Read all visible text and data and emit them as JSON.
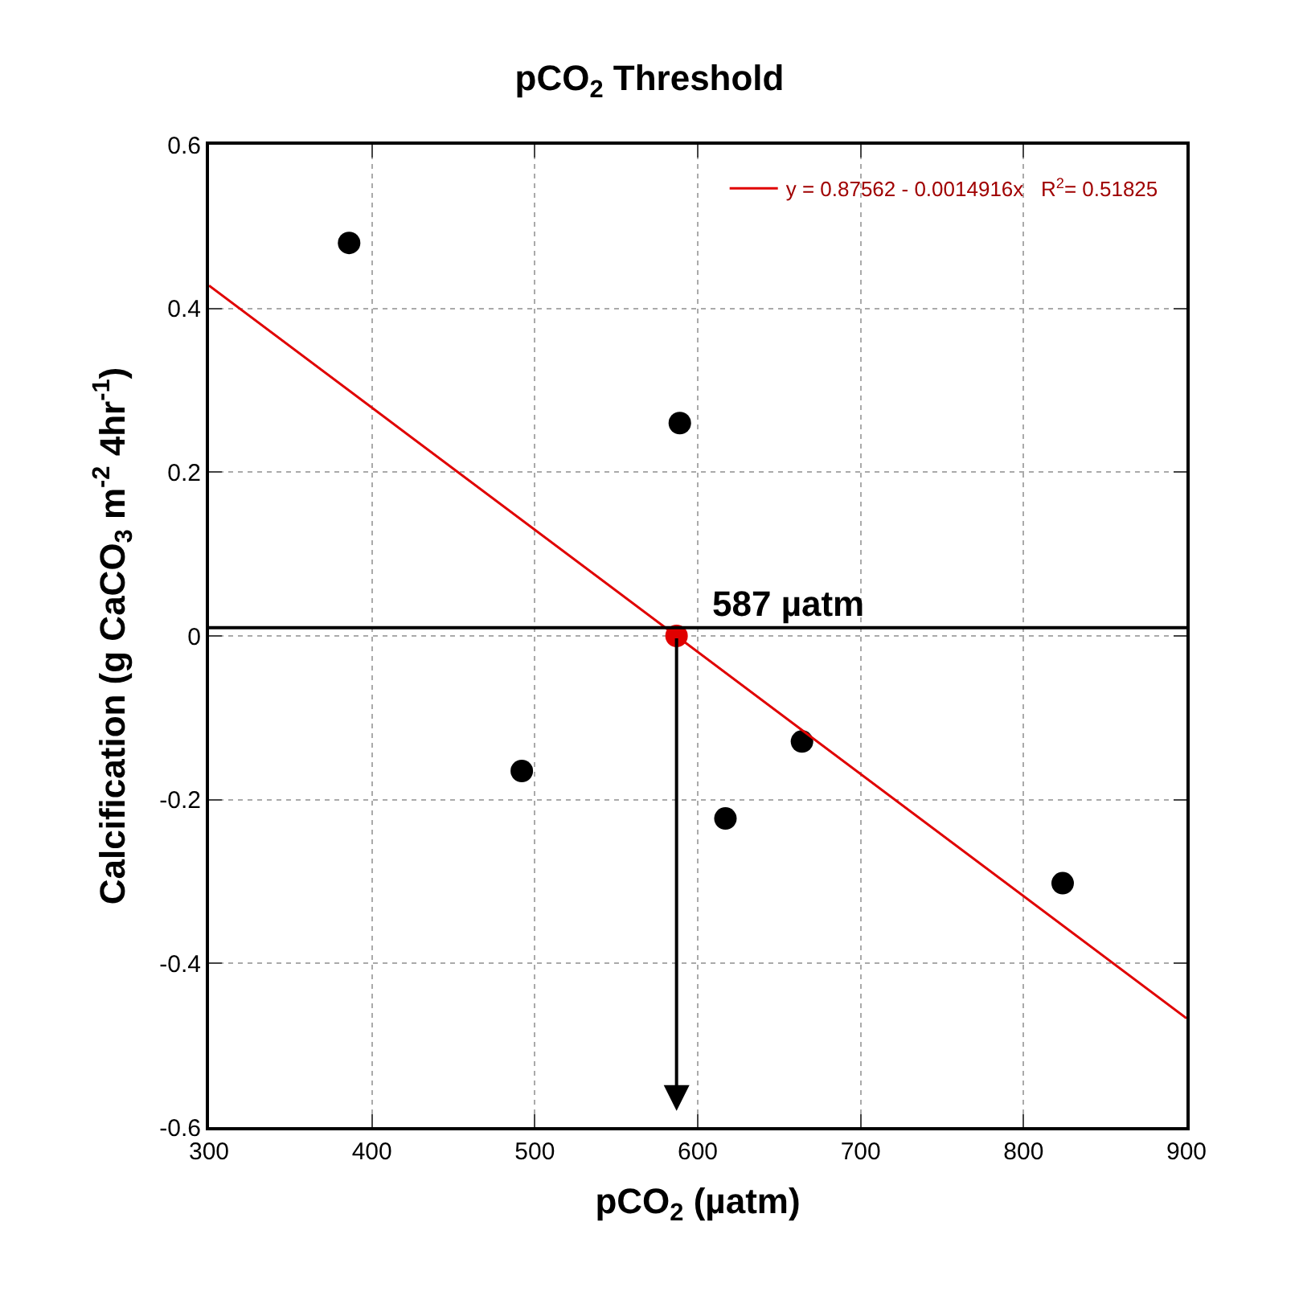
{
  "chart_data": {
    "type": "scatter",
    "title": "pCO$_{2}$ Threshold",
    "xlabel": "pCO$_{2}$ (µatm)",
    "ylabel": "Calcification (g CaCO$_{3}$ m$^{-2}$ 4hr$^{-1}$)",
    "x": [
      386,
      589,
      492,
      617,
      664,
      824
    ],
    "series": [
      {
        "color": "#000000",
        "values": [
          0.48,
          0.26,
          -0.165,
          -0.223,
          -0.129,
          -0.302
        ]
      },
      {
        "type": "line",
        "name": "y = 0.87562 - 0.0014916x   R$^{2}$= 0.51825",
        "color": "#e00000",
        "marker": "none",
        "x": [
          300,
          900
        ],
        "values": [
          0.428,
          -0.467
        ]
      },
      {
        "type": "scatter",
        "color": "#e00000",
        "x": [
          587
        ],
        "values": [
          0
        ]
      }
    ],
    "ref_lines": [
      {
        "axis": "y",
        "value": 0.01,
        "color": "#000000"
      }
    ],
    "annotations": [
      {
        "text": "587 µatm",
        "x": 587,
        "y": 0.01
      }
    ],
    "xlim": [
      300,
      900
    ],
    "xticks": [
      300,
      400,
      500,
      600,
      700,
      800,
      900
    ],
    "ylim": [
      -0.6,
      0.6
    ],
    "yticks": [
      -0.6,
      -0.4,
      -0.2,
      0,
      0.2,
      0.4,
      0.6
    ],
    "grid": true,
    "legend": "top right",
    "marker": "circle"
  }
}
